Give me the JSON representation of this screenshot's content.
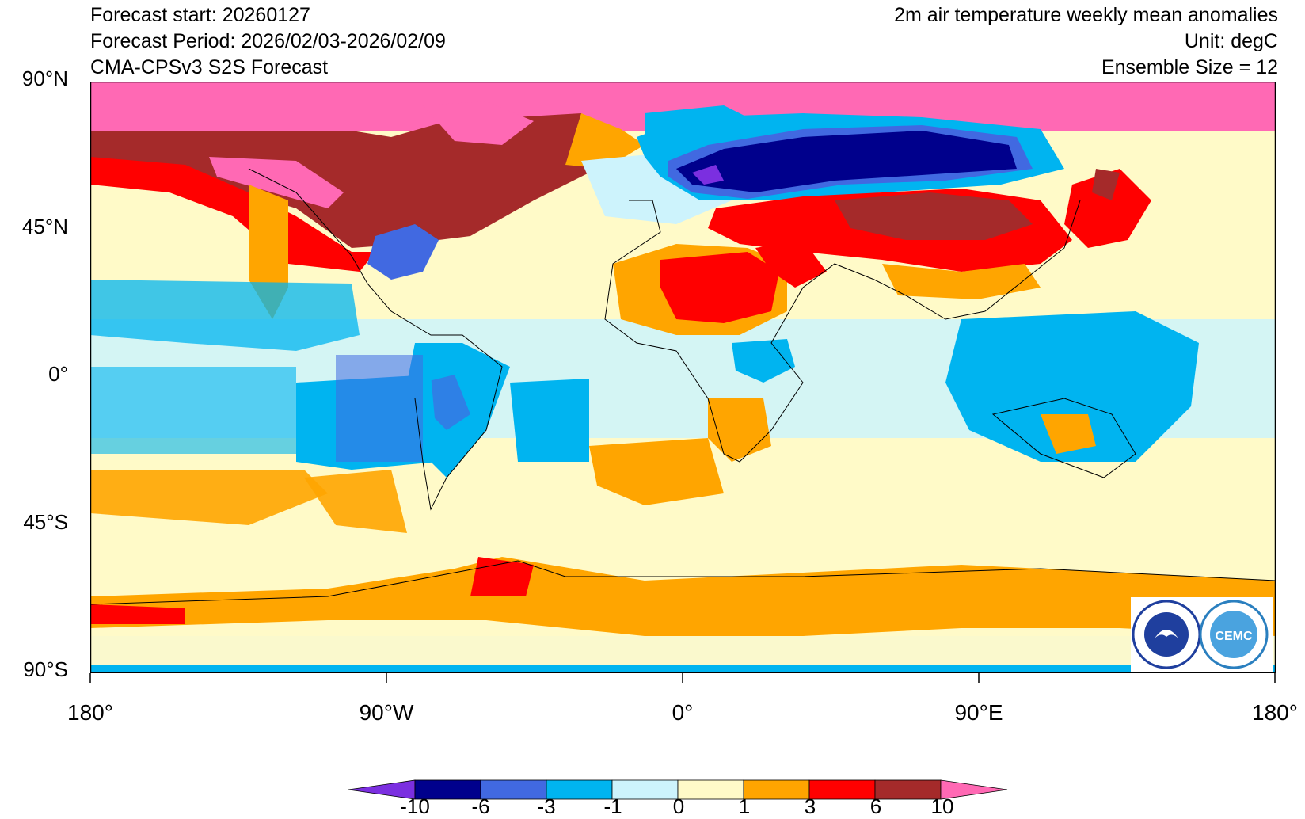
{
  "header": {
    "forecast_start": "Forecast start: 20260127",
    "forecast_period": "Forecast Period: 2026/02/03-2026/02/09",
    "model": "CMA-CPSv3 S2S Forecast",
    "variable": "2m air temperature weekly mean anomalies",
    "unit": "Unit: degC",
    "ensemble": "Ensemble Size = 12"
  },
  "axes": {
    "y_ticks": [
      "90°N",
      "45°N",
      "0°",
      "45°S",
      "90°S"
    ],
    "x_ticks": [
      "180°",
      "90°W",
      "0°",
      "90°E",
      "180°"
    ]
  },
  "colorbar": {
    "labels": [
      "-10",
      "-6",
      "-3",
      "-1",
      "0",
      "1",
      "3",
      "6",
      "10"
    ],
    "colors": [
      "#7b2fe0",
      "#00008c",
      "#4169e1",
      "#00b4f0",
      "#cdf3fc",
      "#fffac8",
      "#ffa500",
      "#ff0000",
      "#a52a2a",
      "#ff69b4"
    ]
  },
  "logos": [
    {
      "name": "cma-logo",
      "text": "CHINA METEOROLOGICAL ADMINISTRATION"
    },
    {
      "name": "cemc-logo",
      "text": "CEMC"
    }
  ],
  "map_data": {
    "type": "filled-contour",
    "projection": "cylindrical-equidistant",
    "lon_range": [
      -180,
      180
    ],
    "lat_range": [
      -90,
      90
    ],
    "levels": [
      -10,
      -6,
      -3,
      -1,
      0,
      1,
      3,
      6,
      10
    ],
    "regions": [
      {
        "name": "arctic",
        "level": ">10",
        "color": "#ff69b4"
      },
      {
        "name": "northern-canada",
        "level": "6 to >10",
        "color": "#a52a2a"
      },
      {
        "name": "alaska-west-canada",
        "level": "3 to 10",
        "color": "#ff0000"
      },
      {
        "name": "northern-eurasia",
        "level": "< -6",
        "color": "#00008c"
      },
      {
        "name": "central-asia",
        "level": "3 to 10",
        "color": "#a52a2a"
      },
      {
        "name": "sahara-middle-east",
        "level": "3 to 6",
        "color": "#ff0000"
      },
      {
        "name": "eastern-north-america",
        "level": "-6 to -3",
        "color": "#4169e1"
      },
      {
        "name": "tropical-pacific",
        "level": "-3 to -1",
        "color": "#00b4f0"
      },
      {
        "name": "south-america",
        "level": "-3 to -1",
        "color": "#00b4f0"
      },
      {
        "name": "southern-africa",
        "level": "1 to 3",
        "color": "#ffa500"
      },
      {
        "name": "australia-indonesia",
        "level": "-3 to -1",
        "color": "#00b4f0"
      },
      {
        "name": "antarctica",
        "level": "1 to 6",
        "color": "#ffa500"
      }
    ]
  }
}
